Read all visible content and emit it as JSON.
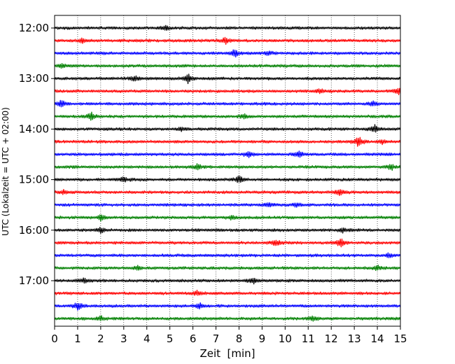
{
  "chart_data": {
    "type": "line",
    "title": "",
    "xlabel": "Zeit  [min]",
    "ylabel": "UTC (Lokalzeit = UTC + 02:00)",
    "xlim": [
      0,
      15
    ],
    "x_ticks": [
      "0",
      "1",
      "2",
      "3",
      "4",
      "5",
      "6",
      "7",
      "8",
      "9",
      "10",
      "11",
      "12",
      "13",
      "14",
      "15"
    ],
    "y_ticks": [
      "12:00",
      "13:00",
      "14:00",
      "15:00",
      "16:00",
      "17:00"
    ],
    "grid": "vertical dotted",
    "trace_interval_min": 15,
    "color_cycle": [
      "#000000",
      "#ff0000",
      "#0000ff",
      "#008000"
    ],
    "traces": [
      {
        "start": "12:00",
        "color": "#000000",
        "events": [
          {
            "t": 4.8,
            "amp": 4
          }
        ]
      },
      {
        "start": "12:15",
        "color": "#ff0000",
        "events": [
          {
            "t": 7.4,
            "amp": 5
          },
          {
            "t": 1.2,
            "amp": 3
          }
        ]
      },
      {
        "start": "12:30",
        "color": "#0000ff",
        "events": [
          {
            "t": 7.8,
            "amp": 6
          },
          {
            "t": 9.3,
            "amp": 3
          }
        ]
      },
      {
        "start": "12:45",
        "color": "#008000",
        "events": [
          {
            "t": 0.3,
            "amp": 3
          }
        ]
      },
      {
        "start": "13:00",
        "color": "#000000",
        "events": [
          {
            "t": 5.8,
            "amp": 6
          },
          {
            "t": 3.5,
            "amp": 4
          }
        ]
      },
      {
        "start": "13:15",
        "color": "#ff0000",
        "events": [
          {
            "t": 14.9,
            "amp": 5
          },
          {
            "t": 11.5,
            "amp": 3
          }
        ]
      },
      {
        "start": "13:30",
        "color": "#0000ff",
        "events": [
          {
            "t": 0.3,
            "amp": 5
          },
          {
            "t": 13.8,
            "amp": 3
          }
        ]
      },
      {
        "start": "13:45",
        "color": "#008000",
        "events": [
          {
            "t": 1.6,
            "amp": 6
          },
          {
            "t": 8.2,
            "amp": 3
          }
        ]
      },
      {
        "start": "14:00",
        "color": "#000000",
        "events": [
          {
            "t": 13.9,
            "amp": 6
          },
          {
            "t": 5.5,
            "amp": 3
          }
        ]
      },
      {
        "start": "14:15",
        "color": "#ff0000",
        "events": [
          {
            "t": 13.2,
            "amp": 8
          },
          {
            "t": 14.2,
            "amp": 3
          }
        ]
      },
      {
        "start": "14:30",
        "color": "#0000ff",
        "events": [
          {
            "t": 8.4,
            "amp": 4
          },
          {
            "t": 10.6,
            "amp": 4
          }
        ]
      },
      {
        "start": "14:45",
        "color": "#008000",
        "events": [
          {
            "t": 6.2,
            "amp": 4
          },
          {
            "t": 14.6,
            "amp": 4
          }
        ]
      },
      {
        "start": "15:00",
        "color": "#000000",
        "events": [
          {
            "t": 8.0,
            "amp": 5
          },
          {
            "t": 3.0,
            "amp": 4
          }
        ]
      },
      {
        "start": "15:15",
        "color": "#ff0000",
        "events": [
          {
            "t": 12.4,
            "amp": 5
          },
          {
            "t": 0.4,
            "amp": 3
          }
        ]
      },
      {
        "start": "15:30",
        "color": "#0000ff",
        "events": [
          {
            "t": 9.3,
            "amp": 3
          },
          {
            "t": 10.5,
            "amp": 3
          }
        ]
      },
      {
        "start": "15:45",
        "color": "#008000",
        "events": [
          {
            "t": 2.0,
            "amp": 4
          },
          {
            "t": 7.7,
            "amp": 3
          }
        ]
      },
      {
        "start": "16:00",
        "color": "#000000",
        "events": [
          {
            "t": 2.0,
            "amp": 3
          },
          {
            "t": 12.5,
            "amp": 3
          }
        ]
      },
      {
        "start": "16:15",
        "color": "#ff0000",
        "events": [
          {
            "t": 9.6,
            "amp": 5
          },
          {
            "t": 12.4,
            "amp": 7
          }
        ]
      },
      {
        "start": "16:30",
        "color": "#0000ff",
        "events": [
          {
            "t": 14.5,
            "amp": 3
          }
        ]
      },
      {
        "start": "16:45",
        "color": "#008000",
        "events": [
          {
            "t": 3.6,
            "amp": 3
          },
          {
            "t": 14.0,
            "amp": 3
          }
        ]
      },
      {
        "start": "17:00",
        "color": "#000000",
        "events": [
          {
            "t": 8.6,
            "amp": 4
          },
          {
            "t": 1.3,
            "amp": 3
          }
        ]
      },
      {
        "start": "17:15",
        "color": "#ff0000",
        "events": [
          {
            "t": 6.2,
            "amp": 3
          }
        ]
      },
      {
        "start": "17:30",
        "color": "#0000ff",
        "events": [
          {
            "t": 1.0,
            "amp": 6
          },
          {
            "t": 6.3,
            "amp": 3
          }
        ]
      },
      {
        "start": "17:45",
        "color": "#008000",
        "events": [
          {
            "t": 2.0,
            "amp": 3
          },
          {
            "t": 11.2,
            "amp": 3
          }
        ]
      }
    ]
  }
}
